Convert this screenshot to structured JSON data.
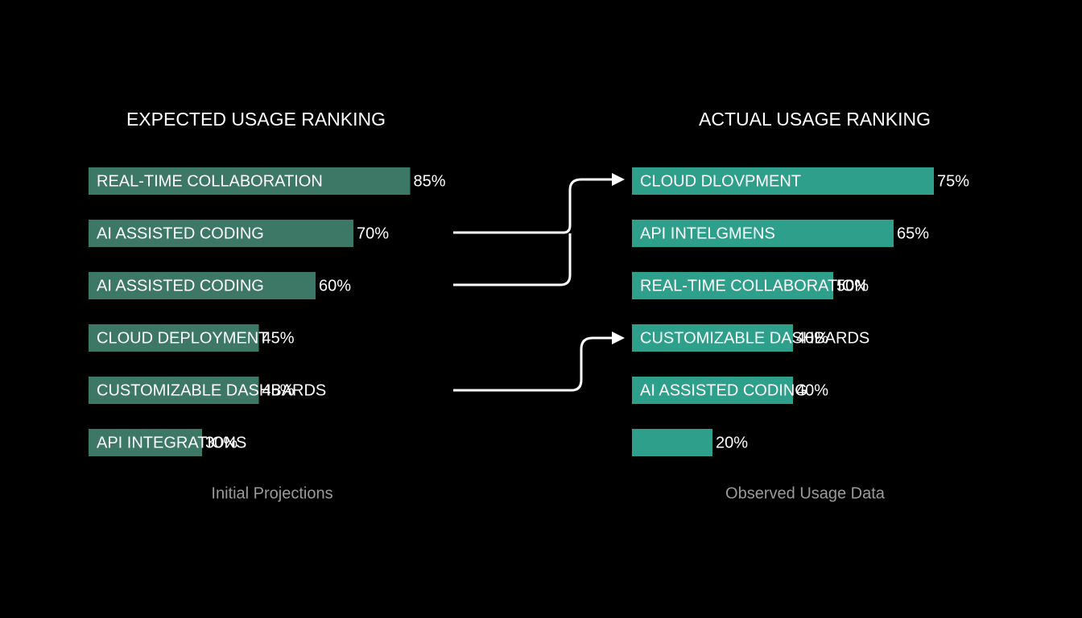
{
  "chart_data": [
    {
      "type": "bar",
      "orientation": "horizontal",
      "title": "EXPECTED USAGE RANKING",
      "caption": "Initial Projections",
      "categories": [
        "REAL-TIME COLLABORATION",
        "AI ASSISTED CODING",
        "AI ASSISTED CODING",
        "CLOUD DEPLOYMENT",
        "CUSTOMIZABLE DASHBARDS",
        "API INTEGRATIONS"
      ],
      "values": [
        85,
        70,
        60,
        45,
        45,
        30
      ],
      "value_labels": [
        "85%",
        "70%",
        "60%",
        "45%",
        "45%",
        "30%"
      ],
      "color": "#3d7766",
      "xlim": [
        0,
        100
      ]
    },
    {
      "type": "bar",
      "orientation": "horizontal",
      "title": "ACTUAL USAGE RANKING",
      "caption": "Observed Usage Data",
      "categories": [
        "CLOUD DLOVPMENT",
        "API INTELGMENS",
        "REAL-TIME COLLABORATION",
        "CUSTOMIZABLE DASHBARDS",
        "AI ASSISTED CODING",
        null
      ],
      "values": [
        75,
        65,
        50,
        40,
        40,
        20
      ],
      "value_labels": [
        "75%",
        "65%",
        "50%",
        "40%",
        "40%",
        "20%"
      ],
      "color": "#2e9f8a",
      "xlim": [
        0,
        100
      ]
    }
  ]
}
